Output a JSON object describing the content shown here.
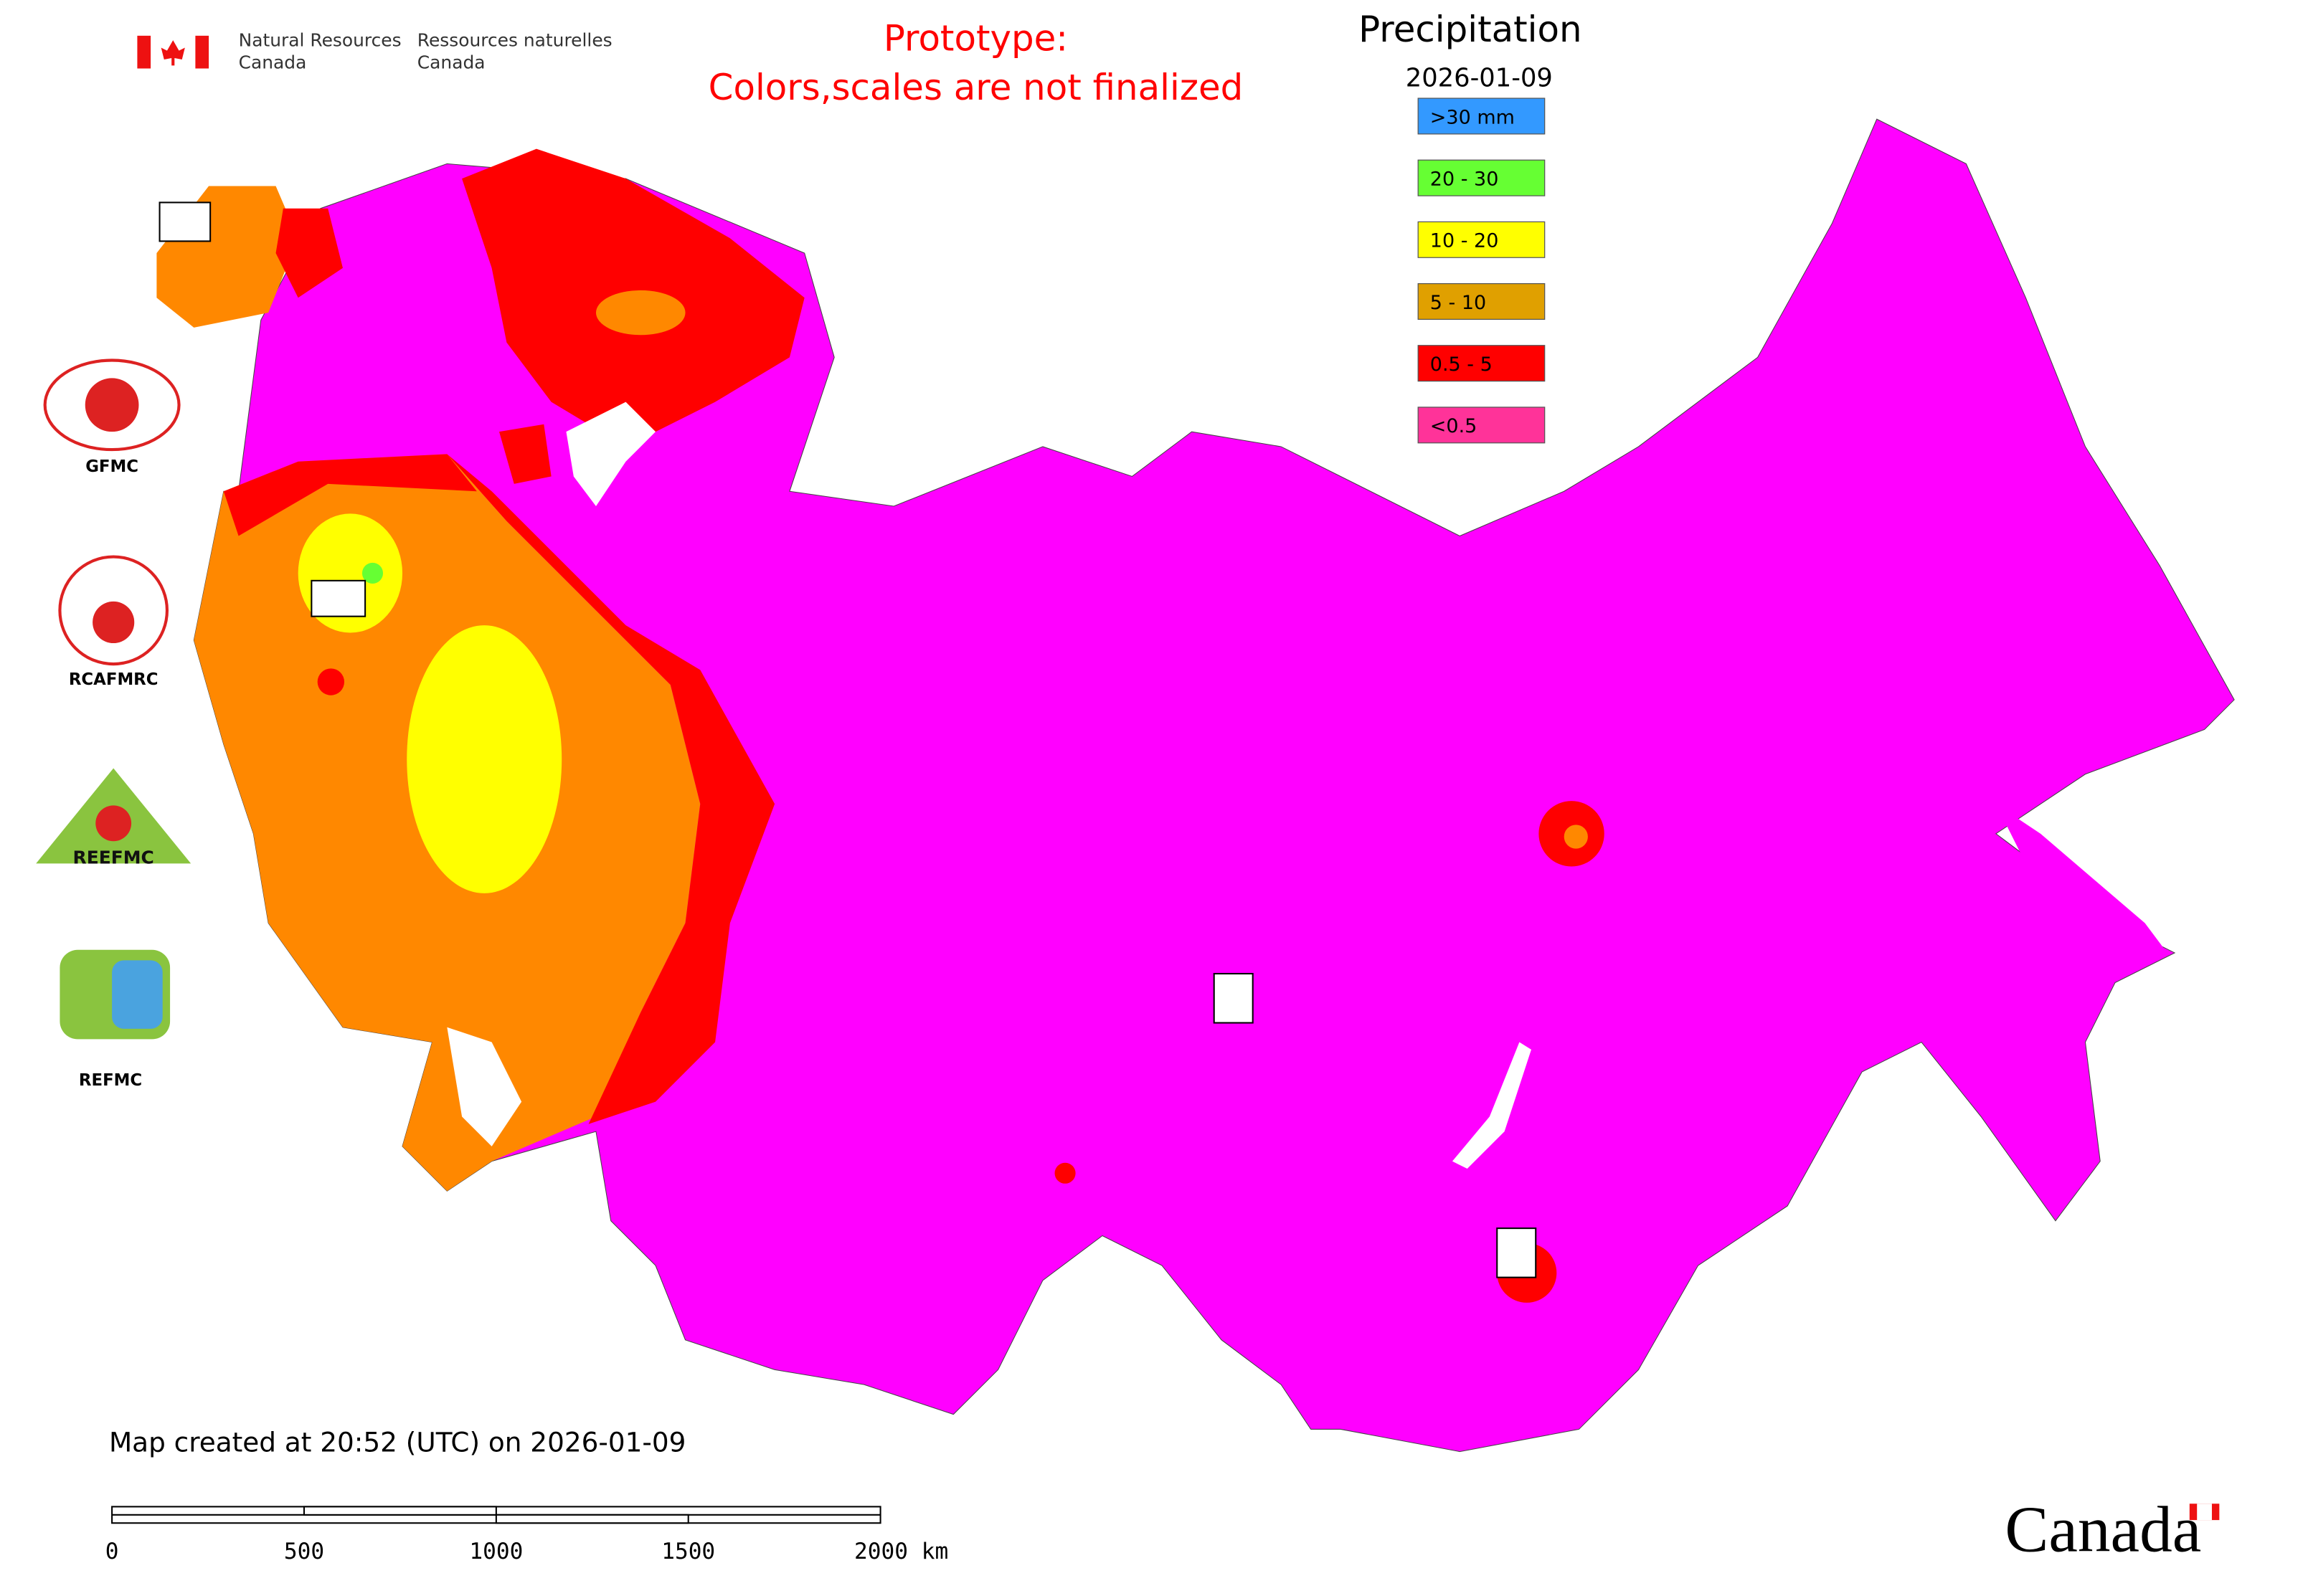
{
  "header": {
    "agency_en": [
      "Natural Resources",
      "Canada"
    ],
    "agency_fr": [
      "Ressources naturelles",
      "Canada"
    ],
    "prototype": [
      "Prototype:",
      "Colors,scales are not finalized"
    ]
  },
  "legend": {
    "title": "Precipitation",
    "date": "2026-01-09",
    "items": [
      {
        "label": ">30 mm",
        "color": "#3399ff"
      },
      {
        "label": "20 - 30",
        "color": "#66ff33"
      },
      {
        "label": "10 - 20",
        "color": "#ffff00"
      },
      {
        "label": "5 - 10",
        "color": "#e0a000"
      },
      {
        "label": "0.5 - 5",
        "color": "#ff0000"
      },
      {
        "label": "<0.5",
        "color": "#ff3399"
      }
    ]
  },
  "logos": [
    "GFMC",
    "RCAFMRC",
    "REEFMC",
    "REFMC"
  ],
  "footer": {
    "created": "Map created at 20:52 (UTC) on 2026-01-09",
    "scale": [
      "0",
      "500",
      "1000",
      "1500",
      "2000 km"
    ],
    "wordmark": "Canada"
  }
}
